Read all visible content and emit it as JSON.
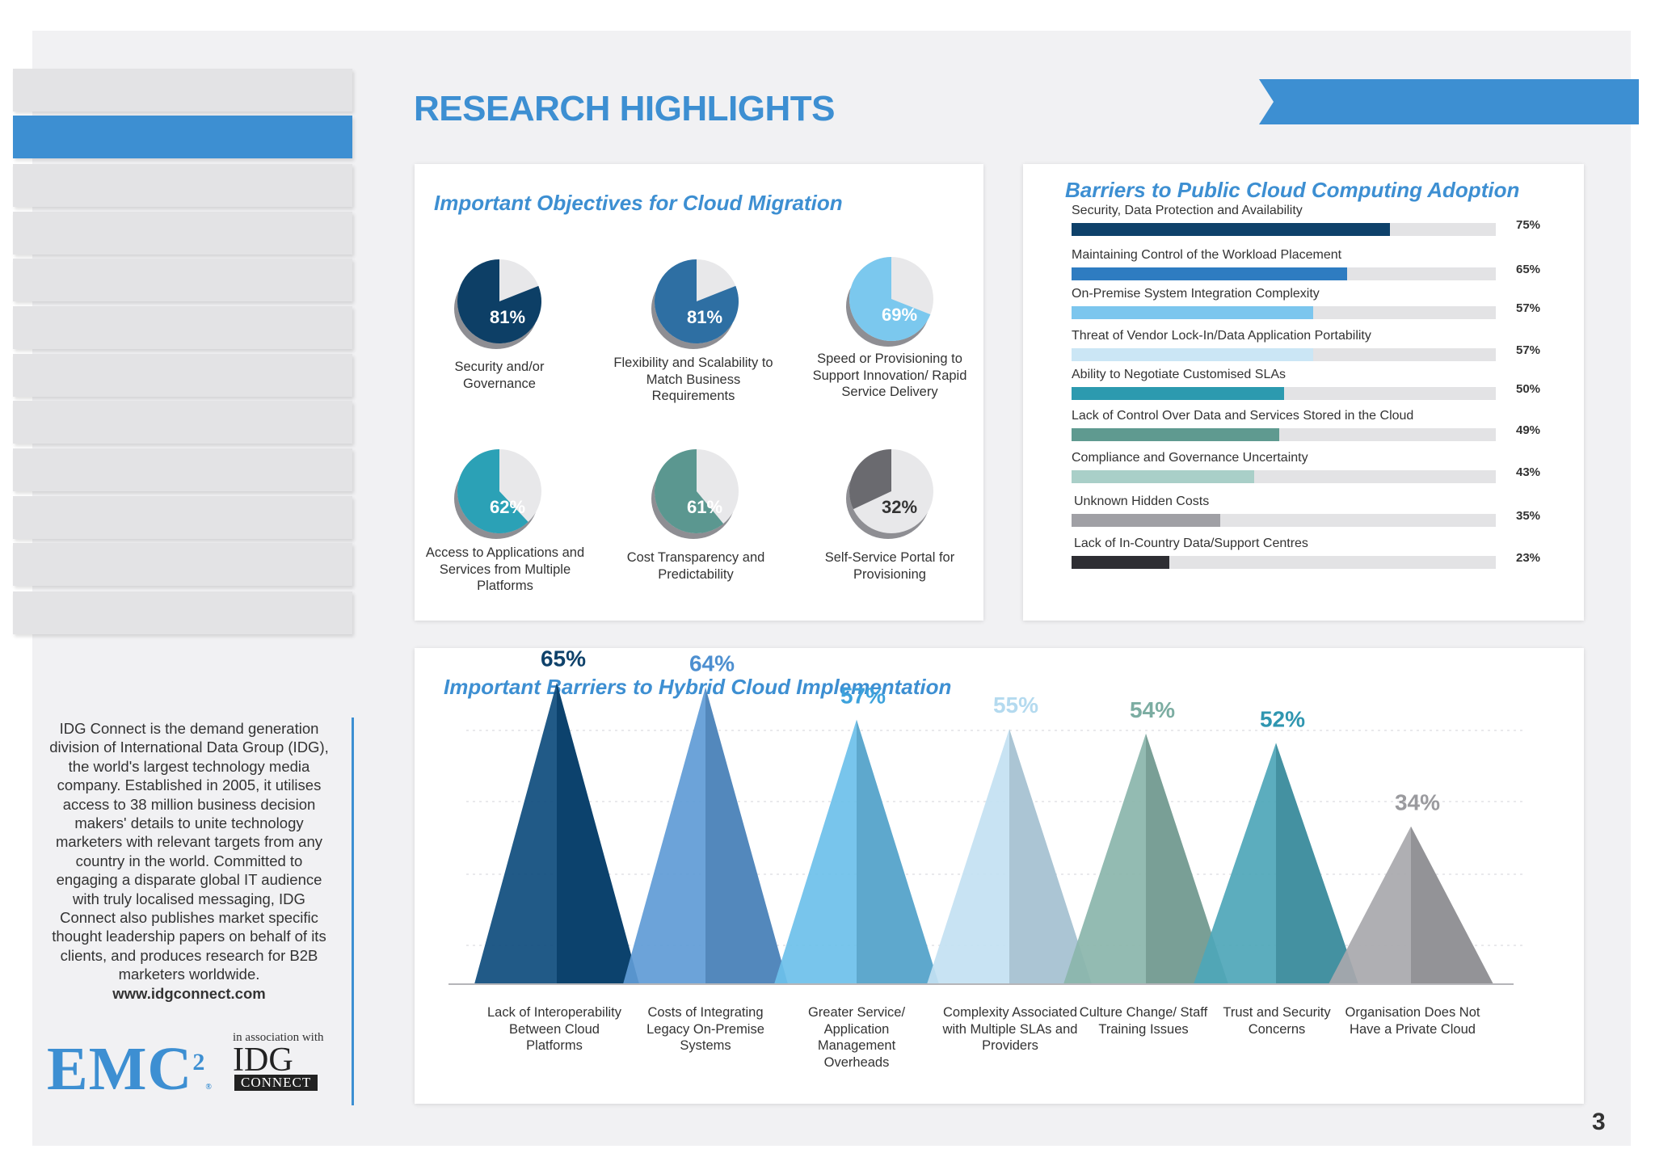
{
  "page": {
    "title": "RESEARCH HIGHLIGHTS",
    "page_number": "3"
  },
  "sidebar": {
    "about": "IDG Connect is the demand generation division of International Data Group (IDG), the world's largest technology media company. Established in 2005, it utilises access to 38 million business decision makers' details to unite technology marketers with relevant targets from any country in the world. Committed to engaging a disparate global IT audience with truly localised messaging, IDG Connect also publishes market specific thought leadership papers on behalf of its clients, and produces research for B2B marketers worldwide.",
    "url": "www.idgconnect.com",
    "emc_logo": "EMC",
    "emc_sup": "2",
    "emc_reg": "®",
    "assoc": "in association with",
    "idg_logo": "IDG",
    "connect_logo": "CONNECT"
  },
  "colors": {
    "accent": "#3d8fd2",
    "tab": "#e3e3e5",
    "track": "#e3e3e5"
  },
  "chart_data": [
    {
      "type": "pie",
      "title": "Important Objectives for Cloud Migration",
      "items": [
        {
          "label": "Security and/or Governance",
          "value": 81,
          "display": "81%",
          "color": "#0d3f66"
        },
        {
          "label": "Flexibility and Scalability to Match Business Requirements",
          "value": 81,
          "display": "81%",
          "color": "#2e6fa3"
        },
        {
          "label": "Speed or Provisioning to Support Innovation/ Rapid Service Delivery",
          "value": 69,
          "display": "69%",
          "color": "#7bc8ee"
        },
        {
          "label": "Access to Applications and Services from Multiple Platforms",
          "value": 62,
          "display": "62%",
          "color": "#2ba1b6"
        },
        {
          "label": "Cost Transparency and Predictability",
          "value": 61,
          "display": "61%",
          "color": "#5b9790"
        },
        {
          "label": "Self-Service Portal for Provisioning",
          "value": 32,
          "display": "32%",
          "color": "#6a6a6f"
        }
      ]
    },
    {
      "type": "bar",
      "title": "Barriers to Public Cloud Computing Adoption",
      "xlim": [
        0,
        100
      ],
      "items": [
        {
          "label": "Security, Data Protection and Availability",
          "value": 75,
          "display": "75%",
          "color": "#0e416a"
        },
        {
          "label": "Maintaining Control of the Workload Placement",
          "value": 65,
          "display": "65%",
          "color": "#2e7cc1"
        },
        {
          "label": "On-Premise System Integration Complexity",
          "value": 57,
          "display": "57%",
          "color": "#7cc6ee"
        },
        {
          "label": "Threat of Vendor Lock-In/Data Application Portability",
          "value": 57,
          "display": "57%",
          "color": "#cbe6f5"
        },
        {
          "label": "Ability to Negotiate Customised SLAs",
          "value": 50,
          "display": "50%",
          "color": "#2c9aaf"
        },
        {
          "label": "Lack of Control Over Data and Services Stored in the Cloud",
          "value": 49,
          "display": "49%",
          "color": "#5f9a90"
        },
        {
          "label": "Compliance and Governance Uncertainty",
          "value": 43,
          "display": "43%",
          "color": "#a9cfc8"
        },
        {
          "label": "Unknown Hidden Costs",
          "value": 35,
          "display": "35%",
          "color": "#a0a0a5"
        },
        {
          "label": "Lack of In-Country Data/Support Centres",
          "value": 23,
          "display": "23%",
          "color": "#2e2e33"
        }
      ]
    },
    {
      "type": "bar",
      "title": "Important Barriers to Hybrid Cloud Implementation",
      "ylim": [
        0,
        70
      ],
      "items": [
        {
          "label": "Lack of Interoperability Between Cloud Platforms",
          "value": 65,
          "display": "65%",
          "color": "#0e4c7d",
          "text_color": "#0e416a"
        },
        {
          "label": "Costs of Integrating Legacy On-Premise Systems",
          "value": 64,
          "display": "64%",
          "color": "#5f9bd6",
          "text_color": "#4d8fd0"
        },
        {
          "label": "Greater Service/ Application Management Overheads",
          "value": 57,
          "display": "57%",
          "color": "#6cc0ea",
          "text_color": "#3da2dc"
        },
        {
          "label": "Complexity Associated with Multiple SLAs and Providers",
          "value": 55,
          "display": "55%",
          "color": "#c3e1f2",
          "text_color": "#b4daef"
        },
        {
          "label": "Culture Change/ Staff Training Issues",
          "value": 54,
          "display": "54%",
          "color": "#8ab5ab",
          "text_color": "#7cada2"
        },
        {
          "label": "Trust and Security Concerns",
          "value": 52,
          "display": "52%",
          "color": "#4ea6b8",
          "text_color": "#2f96b0"
        },
        {
          "label": "Organisation Does Not Have a Private Cloud",
          "value": 34,
          "display": "34%",
          "color": "#a8a8ac",
          "text_color": "#9a9a9e"
        }
      ]
    }
  ]
}
